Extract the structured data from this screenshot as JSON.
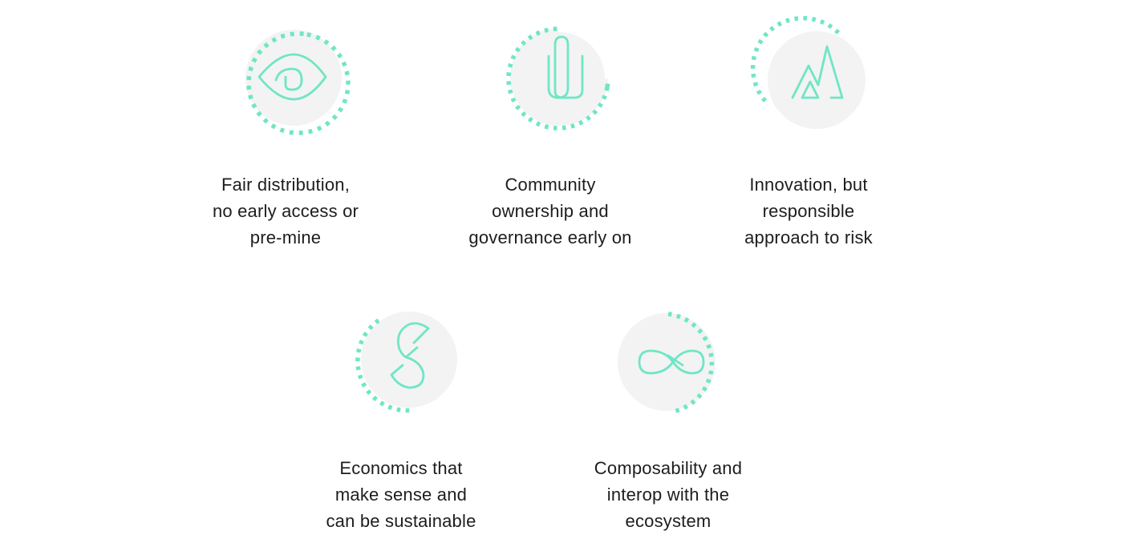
{
  "accent_color": "#6fe6c5",
  "disc_color": "#f3f3f3",
  "principles": [
    {
      "icon": "eye-icon",
      "lines": [
        "Fair distribution,",
        "no early access or",
        "pre-mine"
      ]
    },
    {
      "icon": "paperclip-icon",
      "lines": [
        "Community",
        "ownership and",
        "governance early on"
      ]
    },
    {
      "icon": "mountains-icon",
      "lines": [
        "Innovation, but",
        "responsible",
        "approach to risk"
      ]
    },
    {
      "icon": "s-loop-icon",
      "lines": [
        "Economics that",
        "make sense and",
        "can be sustainable"
      ]
    },
    {
      "icon": "infinity-icon",
      "lines": [
        "Composability and",
        "interop with the",
        "ecosystem"
      ]
    }
  ]
}
